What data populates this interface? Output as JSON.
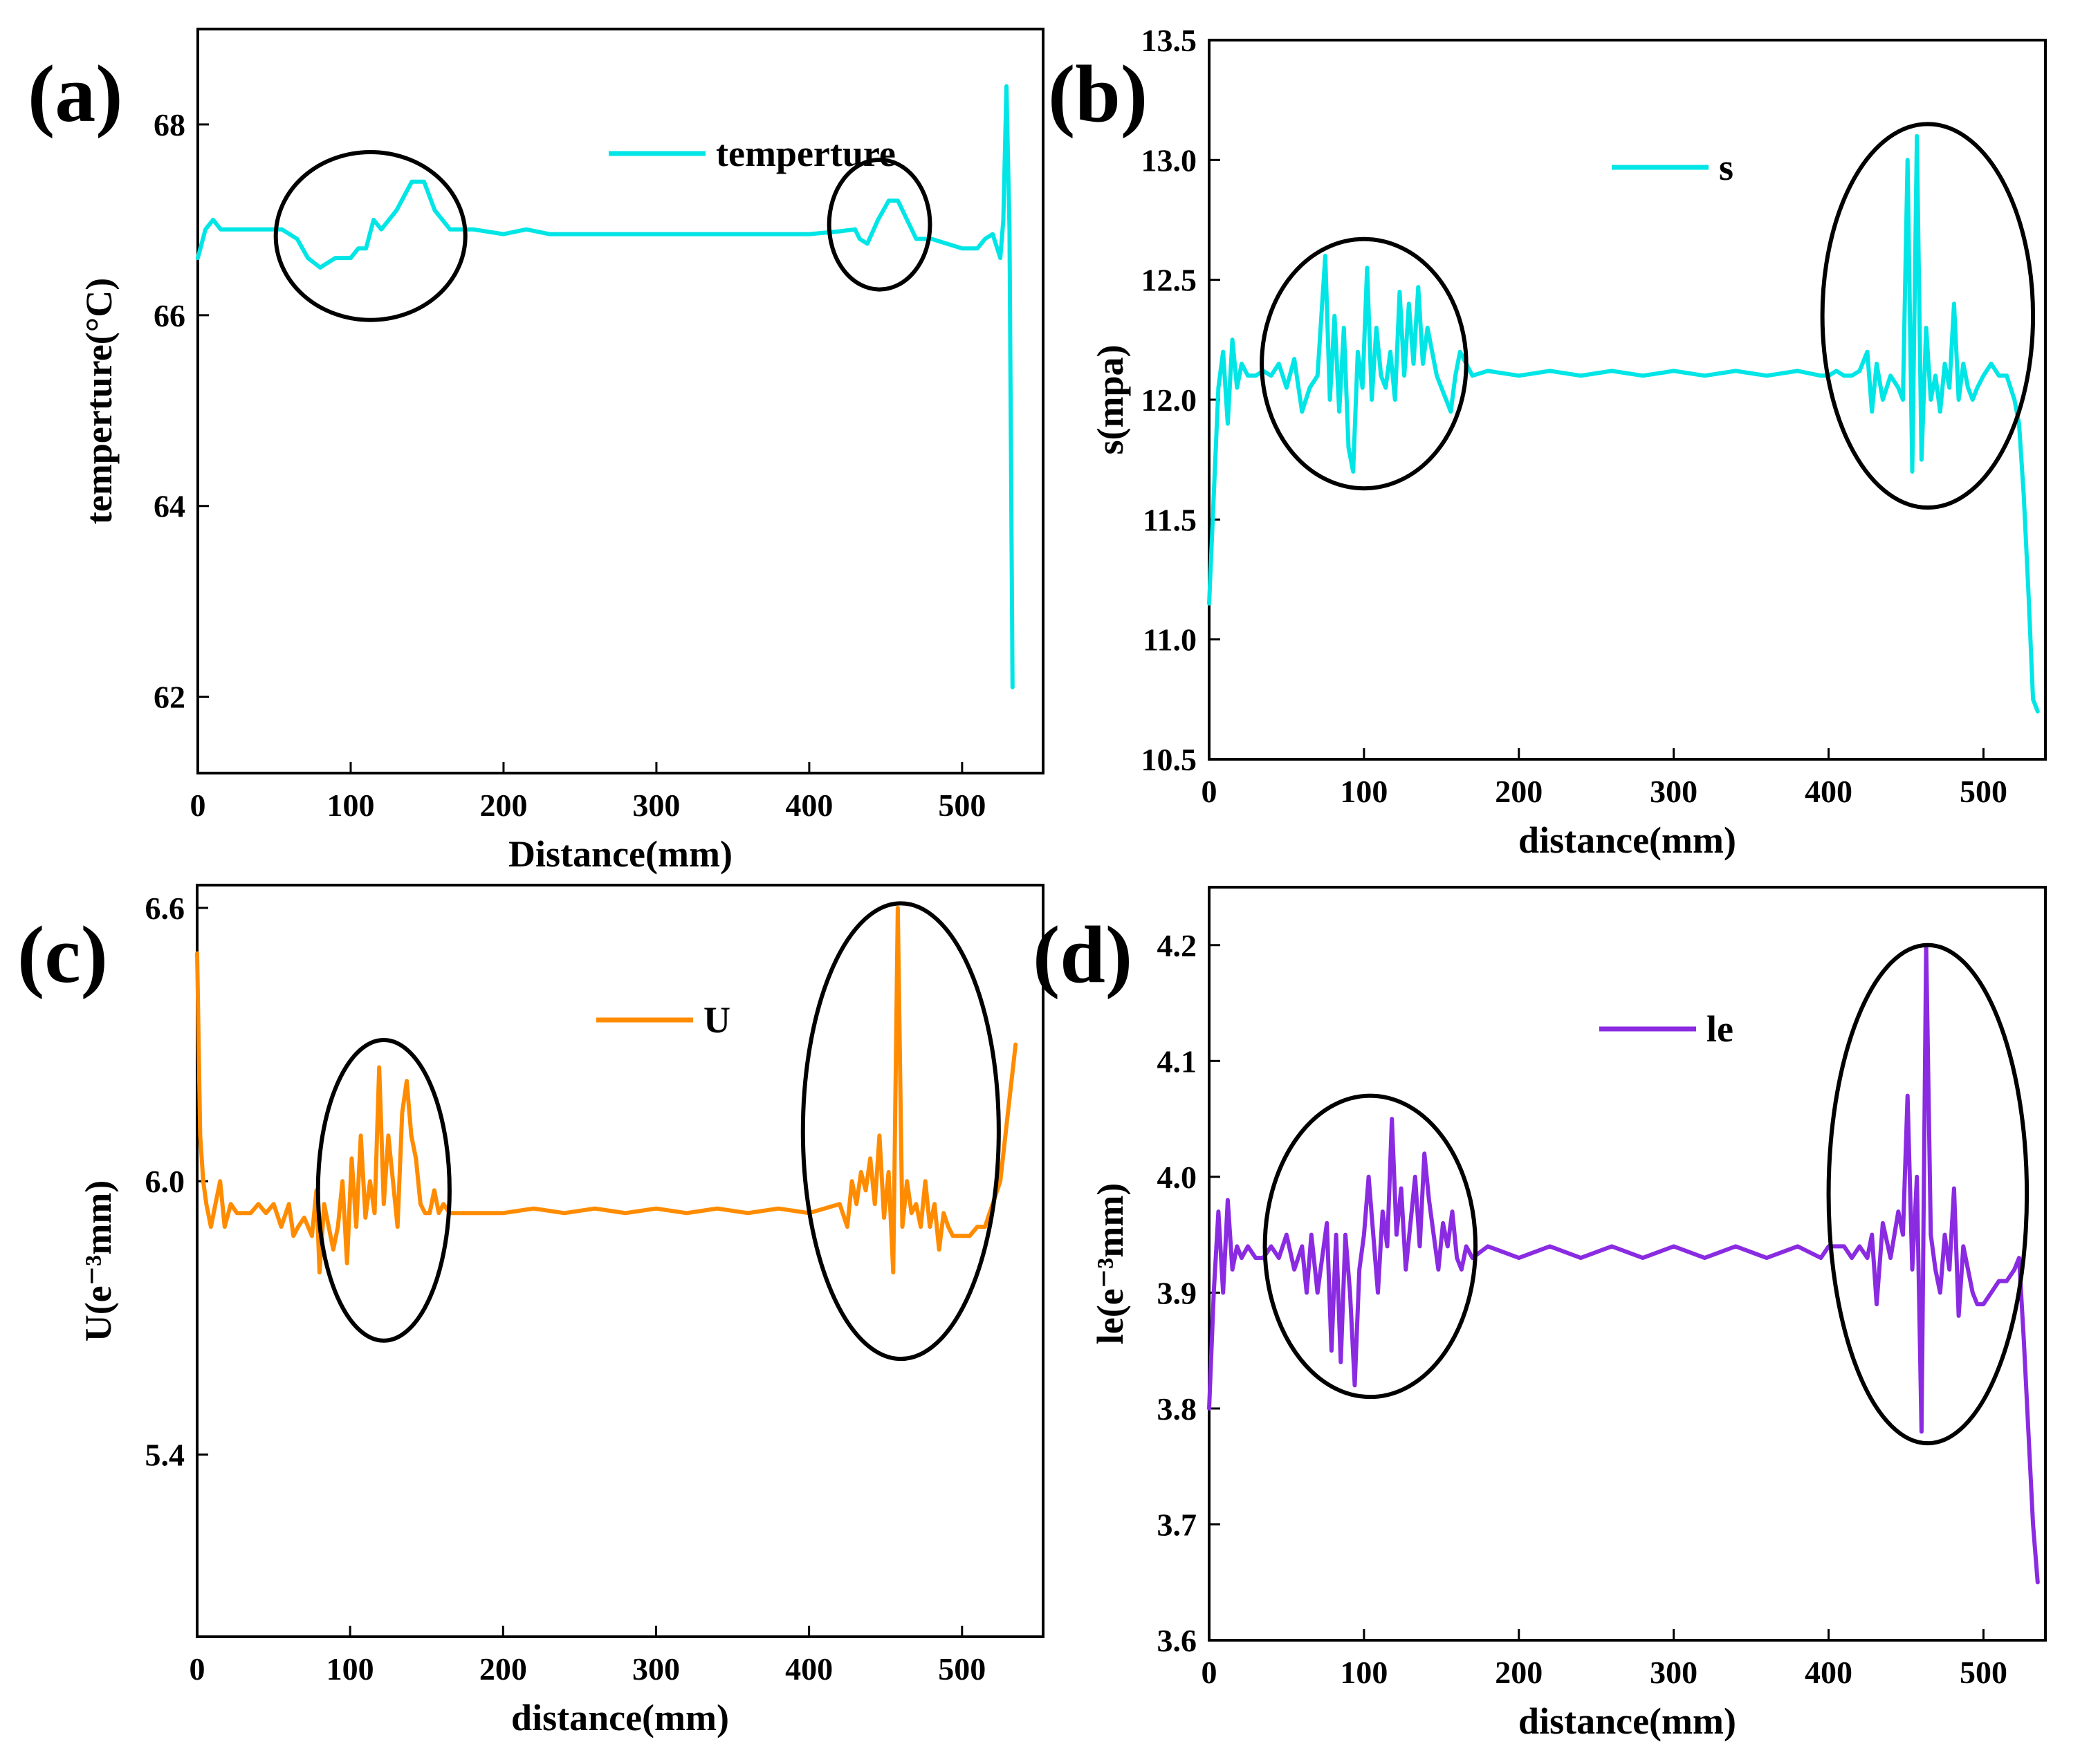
{
  "figure": "Four-panel line chart figure",
  "chart_data": [
    {
      "id": "a",
      "type": "line",
      "panel_label": "(a)",
      "xlabel": "Distance(mm)",
      "ylabel": "temperture(°C)",
      "xlim": [
        0,
        553
      ],
      "ylim": [
        61.2,
        69.0
      ],
      "xticks": [
        0,
        100,
        200,
        300,
        400,
        500
      ],
      "yticks": [
        62,
        64,
        66,
        68
      ],
      "ytick_labels": [
        "62",
        "64",
        "66",
        "68"
      ],
      "color": "#00e5e5",
      "legend": {
        "label": "temperture",
        "position": "top-right"
      },
      "series": [
        {
          "name": "temperture",
          "x": [
            0,
            5,
            10,
            15,
            25,
            40,
            55,
            65,
            72,
            80,
            90,
            100,
            105,
            110,
            115,
            120,
            130,
            140,
            148,
            155,
            165,
            180,
            200,
            215,
            230,
            300,
            400,
            420,
            430,
            433,
            438,
            445,
            452,
            458,
            464,
            470,
            480,
            490,
            500,
            510,
            515,
            520,
            525,
            527,
            529,
            531,
            533
          ],
          "y": [
            66.6,
            66.9,
            67.0,
            66.9,
            66.9,
            66.9,
            66.9,
            66.8,
            66.6,
            66.5,
            66.6,
            66.6,
            66.7,
            66.7,
            67.0,
            66.9,
            67.1,
            67.4,
            67.4,
            67.1,
            66.9,
            66.9,
            66.85,
            66.9,
            66.85,
            66.85,
            66.85,
            66.88,
            66.9,
            66.8,
            66.75,
            67.0,
            67.2,
            67.2,
            67.0,
            66.8,
            66.8,
            66.75,
            66.7,
            66.7,
            66.8,
            66.85,
            66.6,
            67.0,
            68.4,
            66.9,
            62.1
          ]
        }
      ],
      "annotations": [
        {
          "shape": "ellipse",
          "cx": 113,
          "cy": 66.83,
          "rx": 62,
          "ry": 0.88
        },
        {
          "shape": "ellipse",
          "cx": 446,
          "cy": 66.95,
          "rx": 33,
          "ry": 0.68
        }
      ]
    },
    {
      "id": "b",
      "type": "line",
      "panel_label": "(b)",
      "xlabel": "distance(mm)",
      "ylabel": "s(mpa)",
      "xlim": [
        0,
        540
      ],
      "ylim": [
        10.5,
        13.5
      ],
      "xticks": [
        0,
        100,
        200,
        300,
        400,
        500
      ],
      "yticks": [
        10.5,
        11.0,
        11.5,
        12.0,
        12.5,
        13.0,
        13.5
      ],
      "ytick_labels": [
        "10.5",
        "11.0",
        "11.5",
        "12.0",
        "12.5",
        "13.0",
        "13.5"
      ],
      "color": "#00e5e5",
      "legend": {
        "label": "s",
        "position": "top-center"
      },
      "series": [
        {
          "name": "s",
          "x": [
            0,
            3,
            6,
            9,
            12,
            15,
            18,
            21,
            25,
            30,
            35,
            40,
            45,
            50,
            55,
            60,
            65,
            70,
            75,
            78,
            81,
            84,
            87,
            90,
            93,
            96,
            99,
            102,
            105,
            108,
            111,
            114,
            117,
            120,
            123,
            126,
            129,
            132,
            135,
            138,
            141,
            144,
            147,
            150,
            153,
            156,
            159,
            162,
            170,
            180,
            200,
            220,
            240,
            260,
            280,
            300,
            320,
            340,
            360,
            380,
            395,
            400,
            405,
            410,
            415,
            420,
            425,
            428,
            431,
            435,
            440,
            445,
            448,
            451,
            454,
            457,
            460,
            463,
            466,
            469,
            472,
            475,
            478,
            481,
            484,
            487,
            490,
            493,
            496,
            500,
            505,
            510,
            515,
            520,
            523,
            526,
            529,
            532,
            535
          ],
          "y": [
            11.15,
            11.6,
            12.05,
            12.2,
            11.9,
            12.25,
            12.05,
            12.15,
            12.1,
            12.1,
            12.12,
            12.1,
            12.15,
            12.05,
            12.17,
            11.95,
            12.05,
            12.1,
            12.6,
            12.0,
            12.35,
            11.95,
            12.3,
            11.8,
            11.7,
            12.2,
            12.05,
            12.55,
            12.0,
            12.3,
            12.1,
            12.05,
            12.2,
            12.0,
            12.45,
            12.1,
            12.4,
            12.15,
            12.47,
            12.15,
            12.3,
            12.2,
            12.1,
            12.05,
            12.0,
            11.95,
            12.1,
            12.2,
            12.1,
            12.12,
            12.1,
            12.12,
            12.1,
            12.12,
            12.1,
            12.12,
            12.1,
            12.12,
            12.1,
            12.12,
            12.1,
            12.1,
            12.12,
            12.1,
            12.1,
            12.12,
            12.2,
            11.95,
            12.15,
            12.0,
            12.1,
            12.05,
            12.0,
            13.0,
            11.7,
            13.1,
            11.75,
            12.3,
            12.0,
            12.1,
            11.95,
            12.15,
            12.05,
            12.4,
            12.0,
            12.15,
            12.05,
            12.0,
            12.05,
            12.1,
            12.15,
            12.1,
            12.1,
            12.0,
            11.9,
            11.6,
            11.2,
            10.75,
            10.7
          ]
        }
      ],
      "annotations": [
        {
          "shape": "ellipse",
          "cx": 100,
          "cy": 12.15,
          "rx": 66,
          "ry": 0.52
        },
        {
          "shape": "ellipse",
          "cx": 464,
          "cy": 12.35,
          "rx": 68,
          "ry": 0.8
        }
      ]
    },
    {
      "id": "c",
      "type": "line",
      "panel_label": "(c)",
      "xlabel": "distance(mm)",
      "ylabel": "U(e⁻³mm)",
      "xlim": [
        0,
        553
      ],
      "ylim": [
        5.0,
        6.65
      ],
      "xticks": [
        0,
        100,
        200,
        300,
        400,
        500
      ],
      "yticks": [
        5.4,
        6.0,
        6.6
      ],
      "ytick_labels": [
        "5.4",
        "6.0",
        "6.6"
      ],
      "color": "#ff8c00",
      "legend": {
        "label": "U",
        "position": "top-center"
      },
      "series": [
        {
          "name": "U",
          "x": [
            0,
            2,
            4,
            6,
            9,
            12,
            15,
            18,
            22,
            26,
            30,
            35,
            40,
            45,
            50,
            55,
            60,
            63,
            66,
            70,
            75,
            78,
            80,
            83,
            86,
            89,
            92,
            95,
            98,
            101,
            104,
            107,
            110,
            113,
            116,
            119,
            122,
            125,
            128,
            131,
            134,
            137,
            140,
            143,
            146,
            149,
            152,
            155,
            158,
            161,
            165,
            180,
            200,
            220,
            240,
            260,
            280,
            300,
            320,
            340,
            360,
            380,
            400,
            420,
            425,
            428,
            431,
            434,
            437,
            440,
            443,
            446,
            449,
            452,
            455,
            458,
            461,
            464,
            467,
            470,
            473,
            476,
            479,
            482,
            485,
            488,
            491,
            494,
            497,
            500,
            505,
            510,
            515,
            520,
            525,
            530,
            535
          ],
          "y": [
            6.5,
            6.1,
            6.0,
            5.95,
            5.9,
            5.95,
            6.0,
            5.9,
            5.95,
            5.93,
            5.93,
            5.93,
            5.95,
            5.93,
            5.95,
            5.9,
            5.95,
            5.88,
            5.9,
            5.92,
            5.88,
            5.98,
            5.8,
            5.95,
            5.9,
            5.85,
            5.9,
            6.0,
            5.82,
            6.05,
            5.9,
            6.1,
            5.92,
            6.0,
            5.93,
            6.25,
            5.95,
            6.1,
            6.0,
            5.9,
            6.15,
            6.22,
            6.1,
            6.05,
            5.95,
            5.93,
            5.93,
            5.98,
            5.93,
            5.95,
            5.93,
            5.93,
            5.93,
            5.94,
            5.93,
            5.94,
            5.93,
            5.94,
            5.93,
            5.94,
            5.93,
            5.94,
            5.93,
            5.95,
            5.9,
            6.0,
            5.95,
            6.02,
            5.98,
            6.05,
            5.95,
            6.1,
            5.92,
            6.02,
            5.8,
            6.6,
            5.9,
            6.0,
            5.93,
            5.95,
            5.9,
            6.0,
            5.9,
            5.95,
            5.85,
            5.93,
            5.9,
            5.88,
            5.88,
            5.88,
            5.88,
            5.9,
            5.9,
            5.95,
            6.0,
            6.15,
            6.3
          ]
        }
      ],
      "annotations": [
        {
          "shape": "ellipse",
          "cx": 122,
          "cy": 5.98,
          "rx": 43,
          "ry": 0.33
        },
        {
          "shape": "ellipse",
          "cx": 460,
          "cy": 6.11,
          "rx": 64,
          "ry": 0.5
        }
      ]
    },
    {
      "id": "d",
      "type": "line",
      "panel_label": "(d)",
      "xlabel": "distance(mm)",
      "ylabel": "le(e⁻³mm)",
      "xlim": [
        0,
        540
      ],
      "ylim": [
        3.6,
        4.25
      ],
      "xticks": [
        0,
        100,
        200,
        300,
        400,
        500
      ],
      "yticks": [
        3.6,
        3.7,
        3.8,
        3.9,
        4.0,
        4.1,
        4.2
      ],
      "ytick_labels": [
        "3.6",
        "3.7",
        "3.8",
        "3.9",
        "4.0",
        "4.1",
        "4.2"
      ],
      "color": "#8a2be2",
      "legend": {
        "label": "le",
        "position": "top-center"
      },
      "series": [
        {
          "name": "le",
          "x": [
            0,
            3,
            6,
            9,
            12,
            15,
            18,
            21,
            25,
            30,
            35,
            40,
            45,
            50,
            55,
            60,
            63,
            66,
            70,
            73,
            76,
            79,
            82,
            85,
            88,
            91,
            94,
            97,
            100,
            103,
            106,
            109,
            112,
            115,
            118,
            121,
            124,
            127,
            130,
            133,
            136,
            139,
            142,
            145,
            148,
            151,
            154,
            157,
            160,
            163,
            166,
            170,
            180,
            200,
            220,
            240,
            260,
            280,
            300,
            320,
            340,
            360,
            380,
            395,
            400,
            405,
            410,
            415,
            420,
            425,
            428,
            431,
            435,
            440,
            445,
            448,
            451,
            454,
            457,
            460,
            463,
            466,
            469,
            472,
            475,
            478,
            481,
            484,
            487,
            490,
            493,
            496,
            500,
            505,
            510,
            515,
            520,
            523,
            526,
            529,
            532,
            535
          ],
          "y": [
            3.8,
            3.9,
            3.97,
            3.9,
            3.98,
            3.92,
            3.94,
            3.93,
            3.94,
            3.93,
            3.93,
            3.94,
            3.93,
            3.95,
            3.92,
            3.94,
            3.9,
            3.95,
            3.9,
            3.93,
            3.96,
            3.85,
            3.95,
            3.84,
            3.95,
            3.9,
            3.82,
            3.92,
            3.95,
            4.0,
            3.95,
            3.9,
            3.97,
            3.94,
            4.05,
            3.95,
            3.99,
            3.92,
            3.96,
            4.0,
            3.94,
            4.02,
            3.98,
            3.95,
            3.92,
            3.96,
            3.94,
            3.97,
            3.93,
            3.92,
            3.94,
            3.93,
            3.94,
            3.93,
            3.94,
            3.93,
            3.94,
            3.93,
            3.94,
            3.93,
            3.94,
            3.93,
            3.94,
            3.93,
            3.94,
            3.94,
            3.94,
            3.93,
            3.94,
            3.93,
            3.95,
            3.89,
            3.96,
            3.93,
            3.97,
            3.95,
            4.07,
            3.92,
            4.0,
            3.78,
            4.2,
            3.95,
            3.92,
            3.9,
            3.95,
            3.92,
            3.99,
            3.88,
            3.94,
            3.92,
            3.9,
            3.89,
            3.89,
            3.9,
            3.91,
            3.91,
            3.92,
            3.93,
            3.86,
            3.78,
            3.7,
            3.65
          ]
        }
      ],
      "annotations": [
        {
          "shape": "ellipse",
          "cx": 104,
          "cy": 3.94,
          "rx": 68,
          "ry": 0.13
        },
        {
          "shape": "ellipse",
          "cx": 464,
          "cy": 3.985,
          "rx": 64,
          "ry": 0.215
        }
      ]
    }
  ]
}
